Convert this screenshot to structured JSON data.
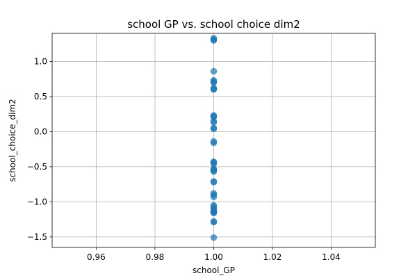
{
  "chart_data": {
    "type": "scatter",
    "title": "school GP vs. school choice dim2",
    "xlabel": "school_GP",
    "ylabel": "school_choice_dim2",
    "xlim": [
      0.945,
      1.055
    ],
    "ylim": [
      -1.65,
      1.4
    ],
    "xticks": [
      0.96,
      0.98,
      1.0,
      1.02,
      1.04
    ],
    "xtick_labels": [
      "0.96",
      "0.98",
      "1.00",
      "1.02",
      "1.04"
    ],
    "yticks": [
      -1.5,
      -1.0,
      -0.5,
      0.0,
      0.5,
      1.0
    ],
    "ytick_labels": [
      "−1.5",
      "−1.0",
      "−0.5",
      "0.0",
      "0.5",
      "1.0"
    ],
    "grid": true,
    "marker_color": "#1f77b4",
    "marker_alpha": 0.7,
    "points": {
      "x": [
        1.0,
        1.0,
        1.0,
        1.0,
        1.0,
        1.0,
        1.0,
        1.0,
        1.0,
        1.0,
        1.0,
        1.0,
        1.0,
        1.0,
        1.0,
        1.0,
        1.0,
        1.0,
        1.0,
        1.0,
        1.0,
        1.0,
        1.0,
        1.0,
        1.0,
        1.0,
        1.0,
        1.0,
        1.0,
        1.0,
        1.0,
        1.0,
        1.0,
        1.0,
        1.0,
        1.0,
        1.0,
        1.0,
        1.0,
        1.0,
        1.0
      ],
      "y": [
        1.33,
        1.31,
        1.3,
        0.86,
        0.73,
        0.71,
        0.7,
        0.62,
        0.61,
        0.6,
        0.23,
        0.21,
        0.15,
        0.13,
        0.05,
        0.04,
        -0.14,
        -0.16,
        -0.43,
        -0.44,
        -0.46,
        -0.53,
        -0.55,
        -0.57,
        -0.71,
        -0.72,
        -0.88,
        -0.9,
        -0.93,
        -1.05,
        -1.07,
        -1.1,
        -1.12,
        -1.14,
        -1.15,
        -1.16,
        -1.28,
        -1.29,
        -1.51,
        0.22,
        -0.54
      ]
    }
  }
}
